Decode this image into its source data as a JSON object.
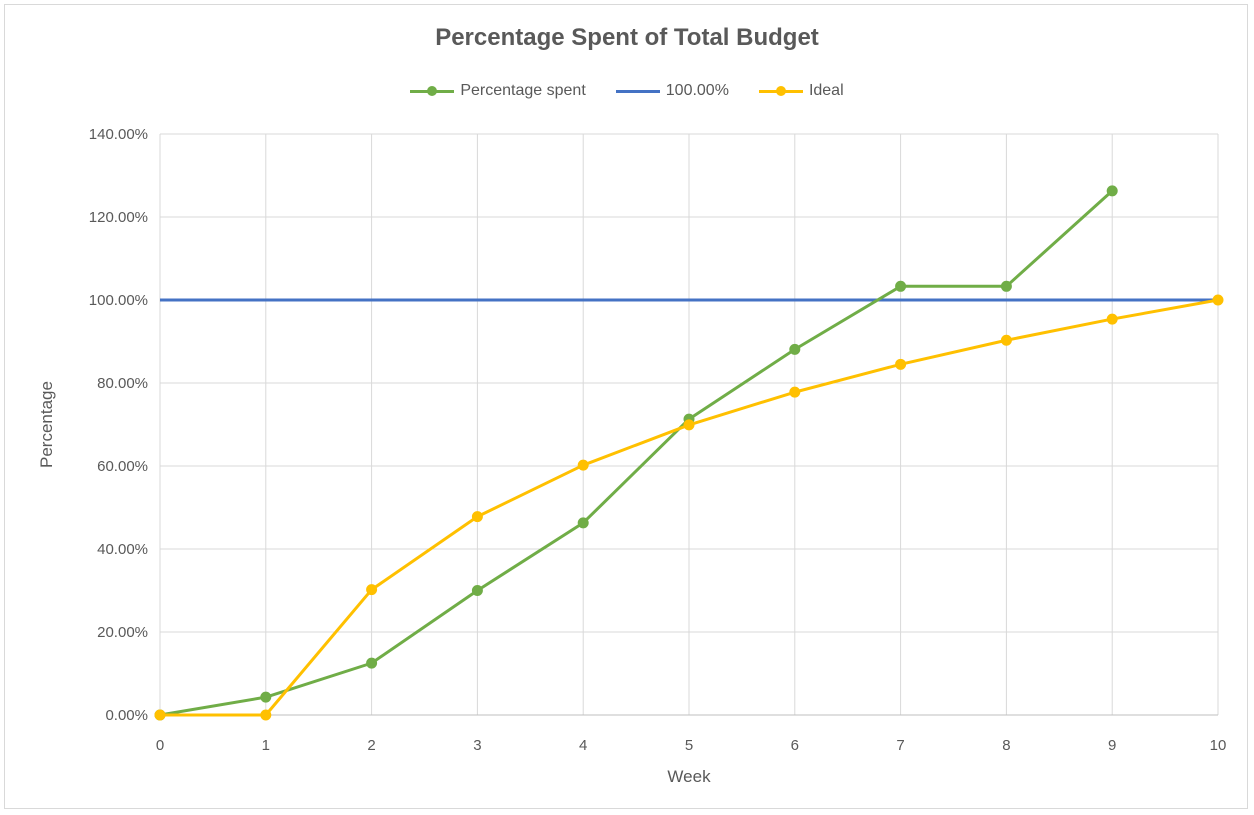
{
  "chart_data": {
    "type": "line",
    "title": "Percentage Spent of Total Budget",
    "xlabel": "Week",
    "ylabel": "Percentage",
    "x": [
      0,
      1,
      2,
      3,
      4,
      5,
      6,
      7,
      8,
      9,
      10
    ],
    "xlim": [
      0,
      10
    ],
    "ylim": [
      0,
      140
    ],
    "yticks": [
      0,
      20,
      40,
      60,
      80,
      100,
      120,
      140
    ],
    "ytick_labels": [
      "0.00%",
      "20.00%",
      "40.00%",
      "60.00%",
      "80.00%",
      "100.00%",
      "120.00%",
      "140.00%"
    ],
    "xtick_labels": [
      "0",
      "1",
      "2",
      "3",
      "4",
      "5",
      "6",
      "7",
      "8",
      "9",
      "10"
    ],
    "grid": true,
    "legend_position": "top",
    "series": [
      {
        "name": "Percentage spent",
        "color": "#70ad47",
        "markers": true,
        "x": [
          0,
          1,
          2,
          3,
          4,
          5,
          6,
          7,
          8,
          9
        ],
        "values": [
          0,
          4.3,
          12.5,
          30.0,
          46.3,
          71.3,
          88.1,
          103.3,
          103.3,
          126.3
        ]
      },
      {
        "name": "100.00%",
        "color": "#4472c4",
        "markers": false,
        "x": [
          0,
          10
        ],
        "values": [
          100,
          100
        ]
      },
      {
        "name": "Ideal",
        "color": "#ffc000",
        "markers": true,
        "x": [
          0,
          1,
          2,
          3,
          4,
          5,
          6,
          7,
          8,
          9,
          10
        ],
        "values": [
          0,
          0,
          30.2,
          47.8,
          60.2,
          69.9,
          77.8,
          84.5,
          90.3,
          95.4,
          100
        ]
      }
    ]
  }
}
